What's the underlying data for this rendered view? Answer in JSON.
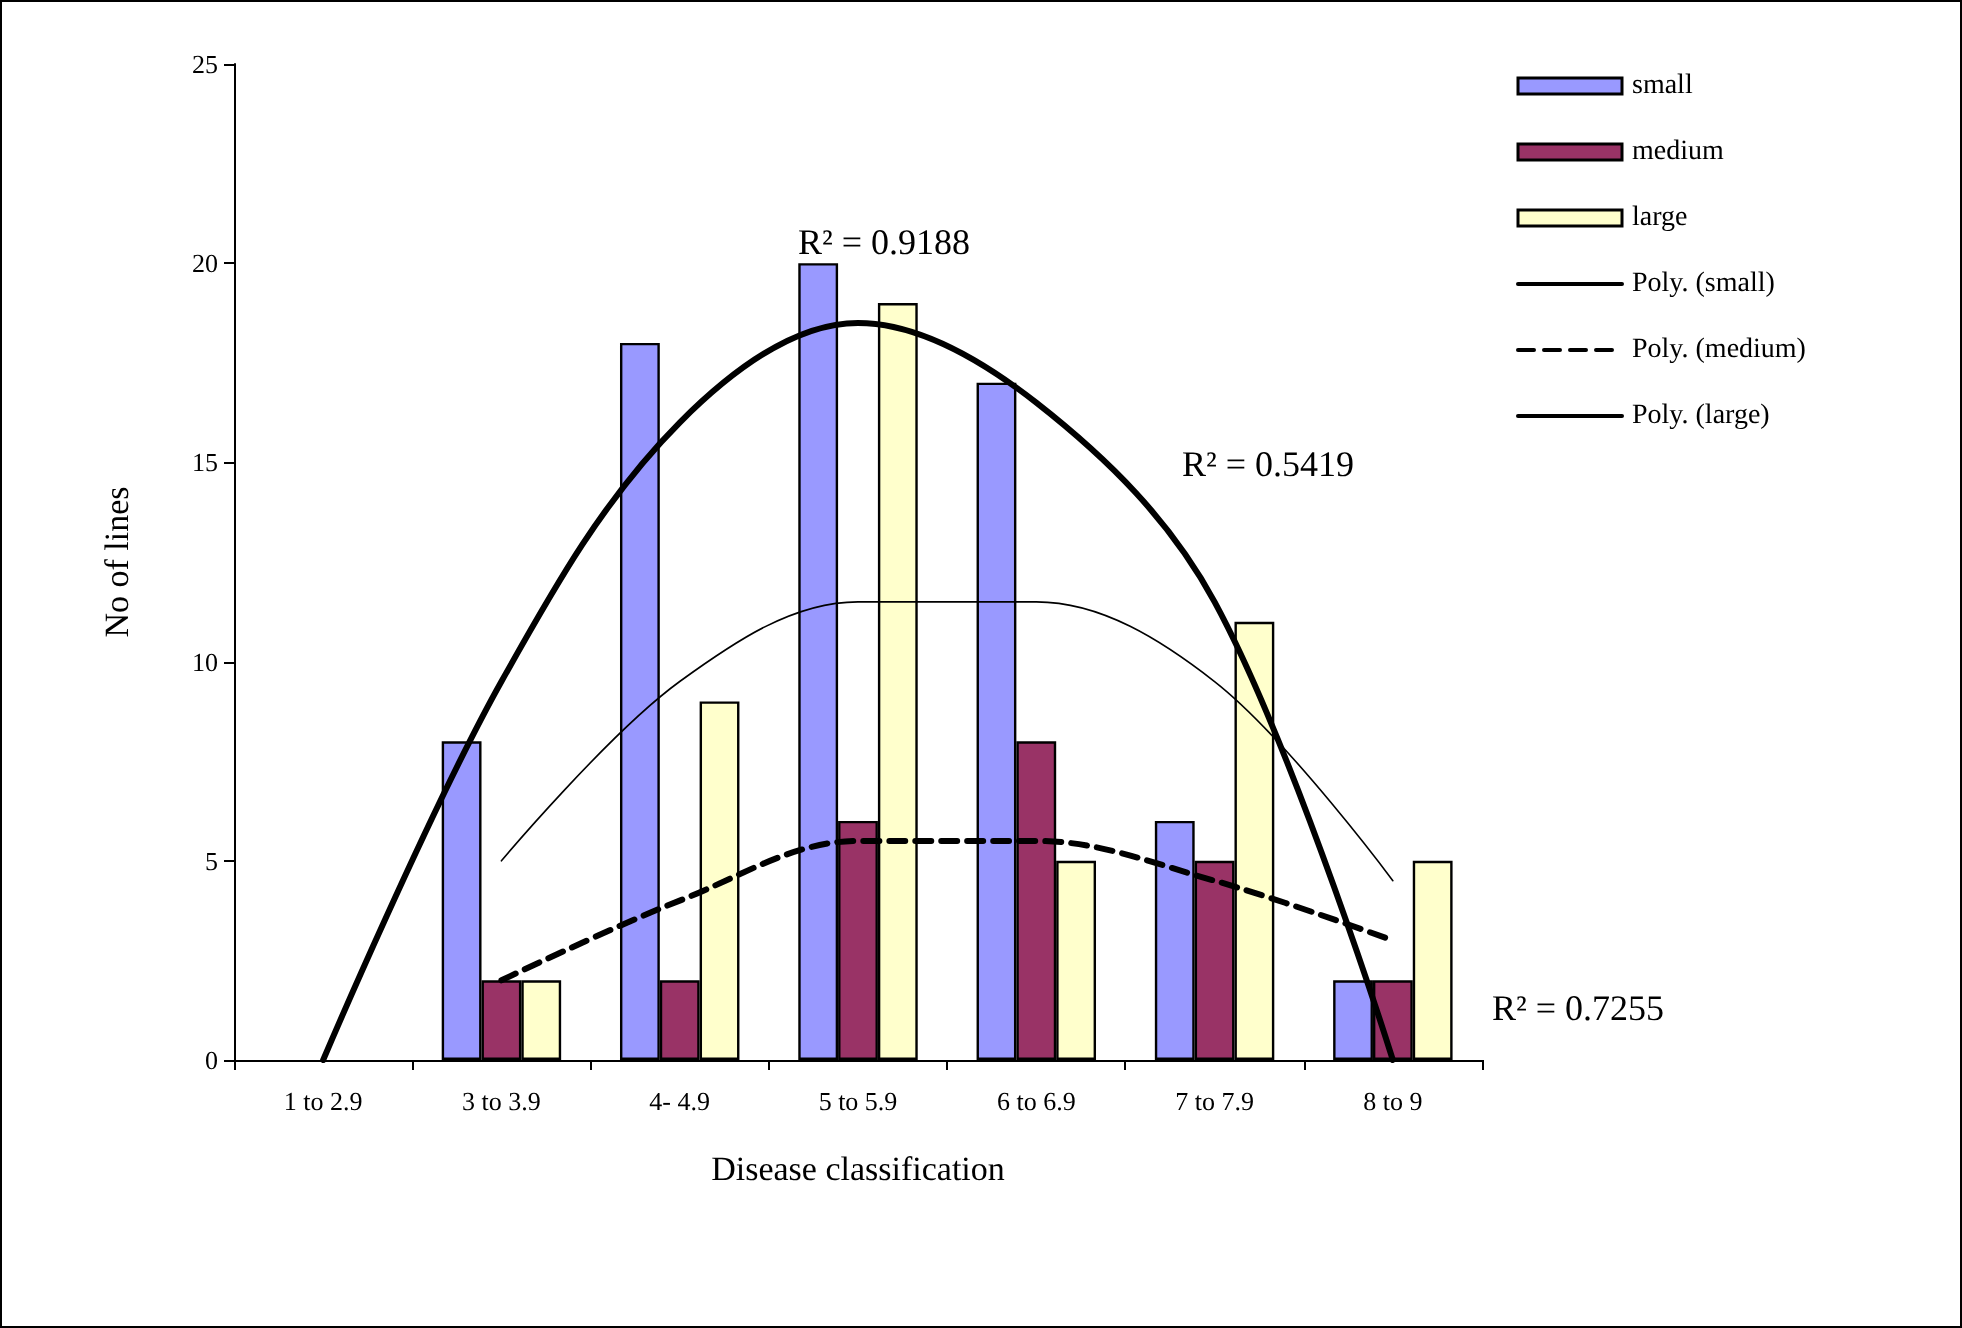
{
  "chart_data": {
    "type": "bar",
    "xlabel": "Disease classification",
    "ylabel": "No of lines",
    "categories": [
      "1 to 2.9",
      "3 to 3.9",
      "4- 4.9",
      "5 to 5.9",
      "6 to 6.9",
      "7 to 7.9",
      "8 to 9"
    ],
    "series": [
      {
        "name": "small",
        "color": "#9999ff",
        "values": [
          null,
          8,
          18,
          20,
          17,
          6,
          2
        ]
      },
      {
        "name": "medium",
        "color": "#993366",
        "values": [
          null,
          2,
          2,
          6,
          8,
          5,
          2
        ]
      },
      {
        "name": "large",
        "color": "#ffffcc",
        "values": [
          null,
          2,
          9,
          19,
          5,
          11,
          5
        ]
      },
      {
        "name": "Poly. (small)",
        "type": "line",
        "color": "#000000",
        "line_style": "solid",
        "marker": "none",
        "values": [
          0,
          9.5,
          16,
          18.5,
          16.5,
          11.5,
          0
        ]
      },
      {
        "name": "Poly. (medium)",
        "type": "line",
        "color": "#000000",
        "line_style": "dashed",
        "marker": "none",
        "values": [
          null,
          2,
          4,
          5.5,
          5.5,
          4.5,
          3
        ]
      },
      {
        "name": "Poly. (large)",
        "type": "line",
        "color": "#000000",
        "line_style": "solid",
        "marker": "none",
        "values": [
          null,
          5,
          9.5,
          11.5,
          11.5,
          9.5,
          4.5
        ]
      }
    ],
    "ylim": [
      0,
      25
    ],
    "yticks": [
      0,
      5,
      10,
      15,
      20,
      25
    ],
    "grid": false,
    "legend": "right",
    "annotations": [
      "R² = 0.9188",
      "R² = 0.5419",
      "R² = 0.7255"
    ]
  }
}
